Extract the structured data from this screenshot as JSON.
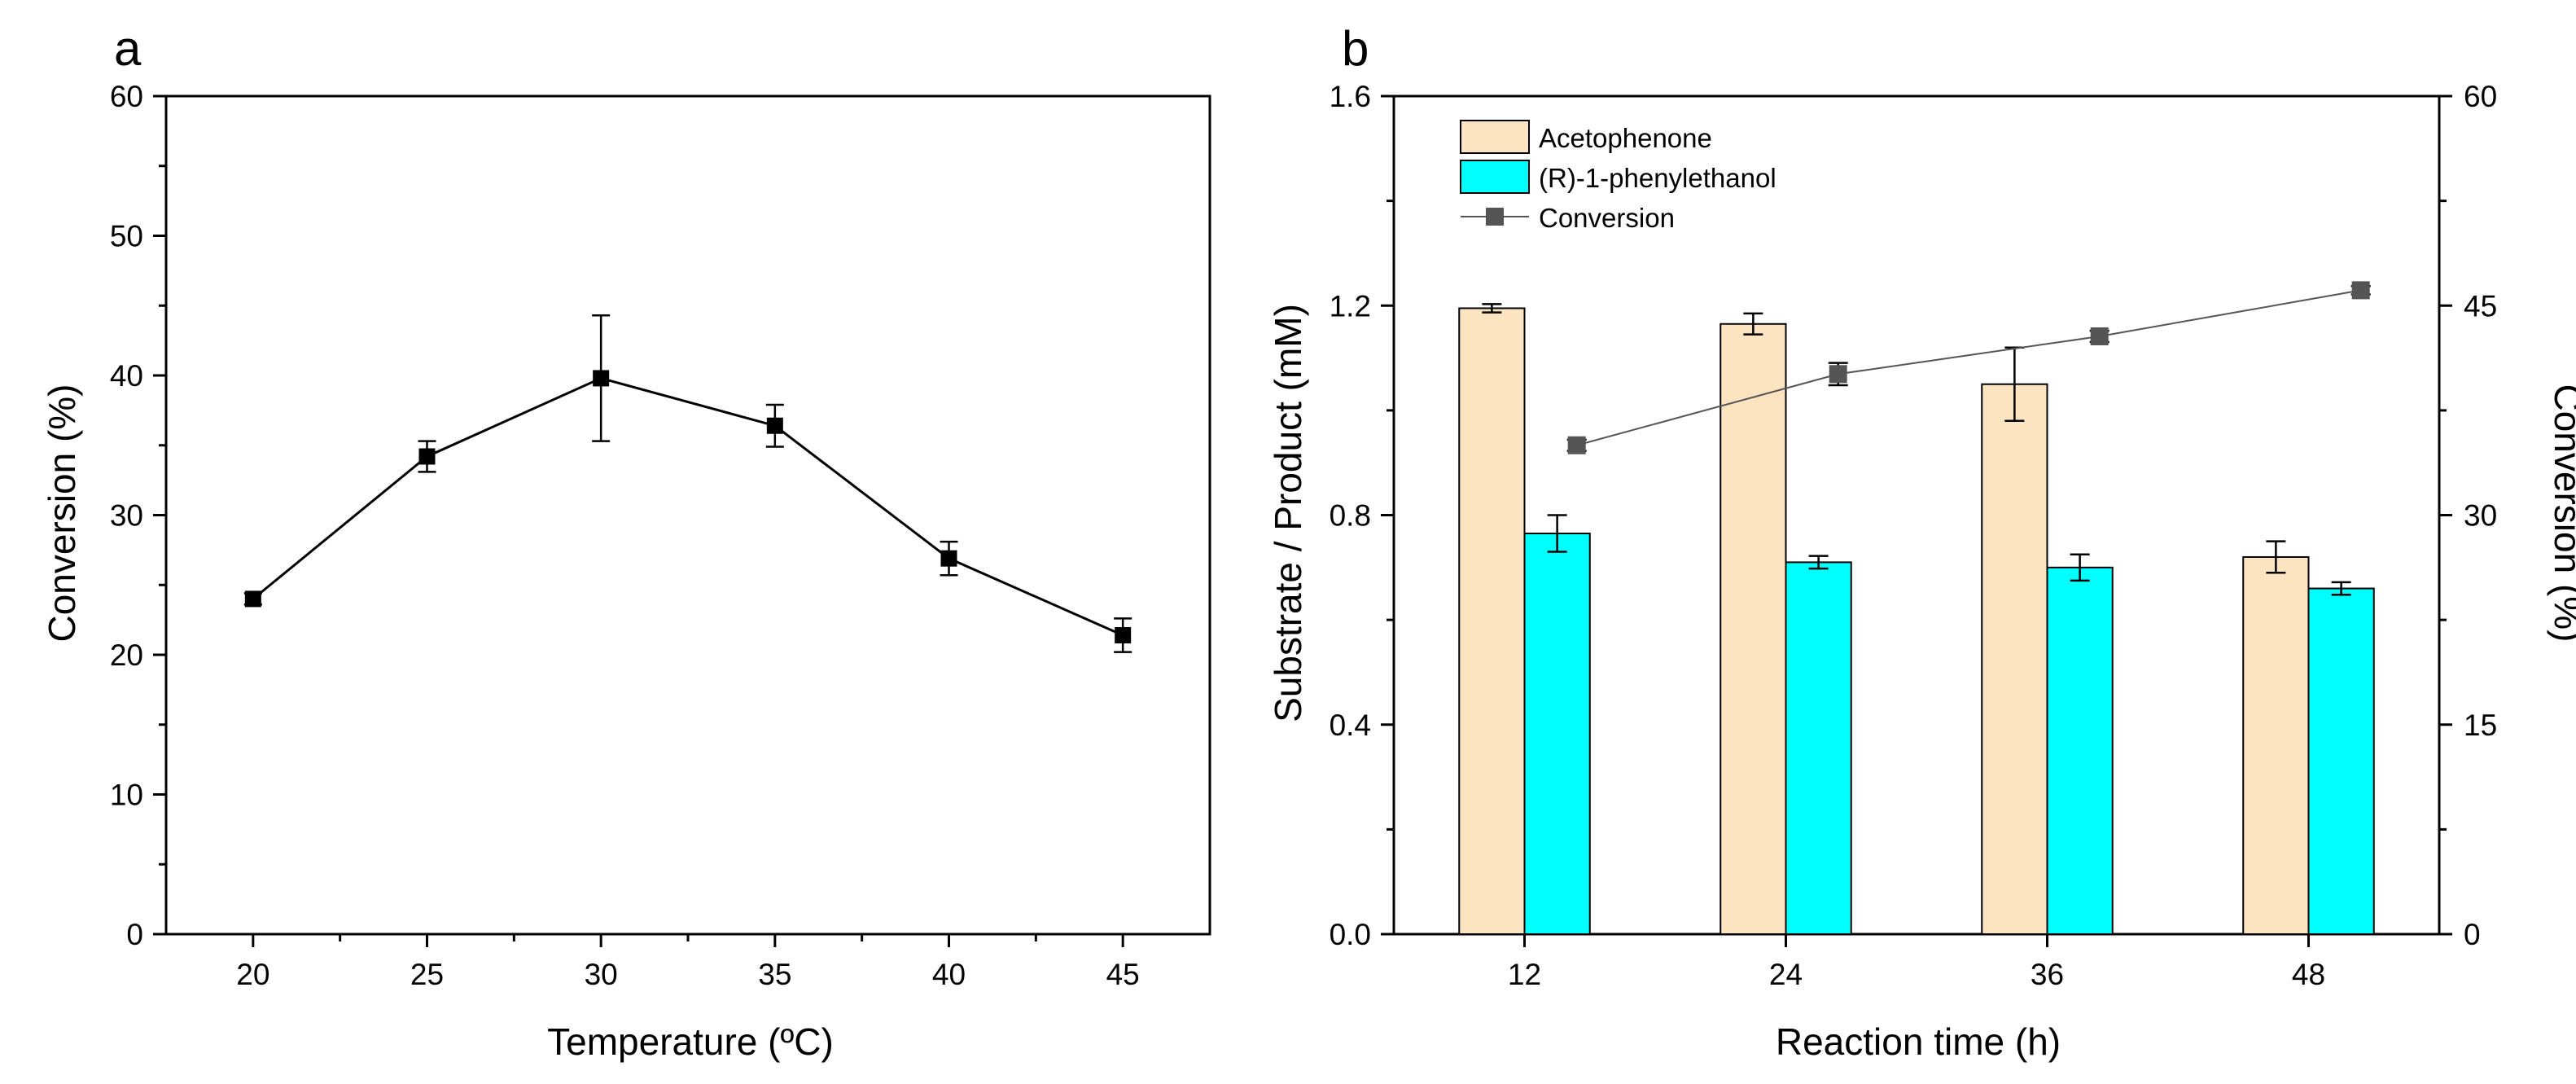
{
  "chart_data": [
    {
      "panel": "a",
      "type": "line",
      "xlabel": "Temperature (ºC)",
      "ylabel": "Conversion (%)",
      "xlim": [
        17.5,
        47.5
      ],
      "ylim": [
        0,
        60
      ],
      "xticks": [
        20,
        25,
        30,
        35,
        40,
        45
      ],
      "yticks": [
        0,
        10,
        20,
        30,
        40,
        50,
        60
      ],
      "grid": false,
      "x": [
        20,
        25,
        30,
        35,
        40,
        45
      ],
      "y": [
        24.0,
        34.2,
        39.8,
        36.4,
        26.9,
        21.4
      ],
      "yerr": [
        0.4,
        1.1,
        4.5,
        1.5,
        1.2,
        1.2
      ],
      "marker": "square",
      "color": "#000000"
    },
    {
      "panel": "b",
      "type": "bar",
      "xlabel": "Reaction time (h)",
      "ylabel": "Substrate / Product (mM)",
      "y2label": "Conversion (%)",
      "categories": [
        "12",
        "24",
        "36",
        "48"
      ],
      "ylim": [
        0,
        1.6
      ],
      "yticks": [
        "0.0",
        "0.4",
        "0.8",
        "1.2",
        "1.6"
      ],
      "y2lim": [
        0,
        60
      ],
      "y2ticks": [
        0,
        15,
        30,
        45,
        60
      ],
      "grid": false,
      "legend_position": "top-left",
      "series": [
        {
          "name": "Acetophenone",
          "type": "bar",
          "axis": "left",
          "color": "#FCE4C0",
          "values": [
            1.195,
            1.165,
            1.05,
            0.72
          ],
          "errors": [
            0.008,
            0.02,
            0.07,
            0.03
          ]
        },
        {
          "name": "(R)-1-phenylethanol",
          "type": "bar",
          "axis": "left",
          "color": "#00FFFF",
          "values": [
            0.765,
            0.71,
            0.7,
            0.66
          ],
          "errors": [
            0.035,
            0.012,
            0.025,
            0.012
          ]
        },
        {
          "name": "Conversion",
          "type": "line",
          "axis": "right",
          "color": "#555555",
          "values": [
            35.0,
            40.1,
            42.8,
            46.1
          ],
          "errors": [
            0.4,
            0.8,
            0.4,
            0.3
          ]
        }
      ]
    }
  ]
}
